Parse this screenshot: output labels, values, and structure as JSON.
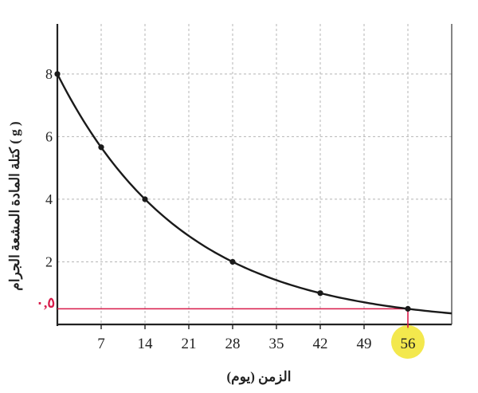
{
  "chart_data": {
    "type": "line",
    "xlabel": "الزمن (يوم)",
    "ylabel": "كتلة المادة المشعة الجرام ( g )",
    "x_ticks": [
      7,
      14,
      21,
      28,
      35,
      42,
      49,
      56
    ],
    "y_ticks": [
      2,
      4,
      6,
      8
    ],
    "xlim": [
      0,
      63
    ],
    "ylim": [
      0,
      9.6
    ],
    "grid": true,
    "series": [
      {
        "x": [
          0,
          7,
          14,
          28,
          42,
          56
        ],
        "y": [
          8,
          5.66,
          4,
          2,
          1,
          0.5
        ],
        "color": "#1a1a1a",
        "curve": "exponential-decay"
      }
    ],
    "annotation": {
      "label": "٠,٥",
      "x": 56,
      "y": 0.5,
      "line_color": "#d81b4a",
      "highlight_tick": "56",
      "highlight_color": "#f2e63a"
    }
  }
}
